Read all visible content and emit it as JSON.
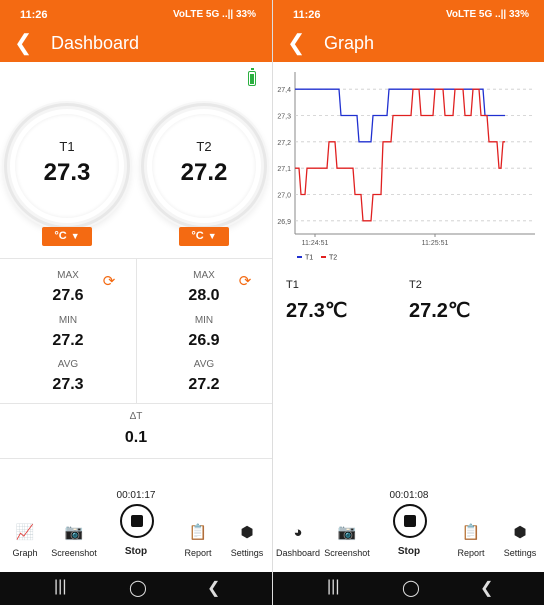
{
  "status": {
    "time": "11:26",
    "indicators": "VoLTE 5G ..|| 33%"
  },
  "dashboard": {
    "title": "Dashboard",
    "sensors": [
      {
        "label": "T1",
        "value": "27.3",
        "unit_label": "°C",
        "max_label": "MAX",
        "max": "27.6",
        "min_label": "MIN",
        "min": "27.2",
        "avg_label": "AVG",
        "avg": "27.3"
      },
      {
        "label": "T2",
        "value": "27.2",
        "unit_label": "°C",
        "max_label": "MAX",
        "max": "28.0",
        "min_label": "MIN",
        "min": "26.9",
        "avg_label": "AVG",
        "avg": "27.2"
      }
    ],
    "delta_label": "ΔT",
    "delta_value": "0.1",
    "timer": "00:01:17",
    "tabs": [
      "Graph",
      "Screenshot",
      "Stop",
      "Report",
      "Settings"
    ]
  },
  "graph": {
    "title": "Graph",
    "timer": "00:01:08",
    "readings": [
      {
        "label": "T1",
        "value": "27.3℃"
      },
      {
        "label": "T2",
        "value": "27.2℃"
      }
    ],
    "tabs": [
      "Dashboard",
      "Screenshot",
      "Stop",
      "Report",
      "Settings"
    ]
  },
  "chart_data": {
    "type": "line",
    "y_ticks": [
      "27,4",
      "27,3",
      "27,2",
      "27,1",
      "27,0",
      "26,9"
    ],
    "ylim": [
      26.85,
      27.45
    ],
    "x_ticks": [
      "11:24:51",
      "11:25:51"
    ],
    "x_tick_positions": [
      10,
      70
    ],
    "xlim": [
      0,
      120
    ],
    "grid": true,
    "legend_position": "bottom-left",
    "series": [
      {
        "name": "T1",
        "color": "#2030d0",
        "x": [
          0,
          22,
          23,
          31,
          32,
          38,
          39,
          46,
          47,
          53,
          54,
          94,
          95,
          105
        ],
        "y": [
          27.4,
          27.4,
          27.3,
          27.3,
          27.2,
          27.2,
          27.3,
          27.3,
          27.4,
          27.4,
          27.4,
          27.4,
          27.3,
          27.3
        ]
      },
      {
        "name": "T2",
        "color": "#e02020",
        "x": [
          0,
          2,
          3,
          5,
          6,
          16,
          17,
          20,
          21,
          29,
          30,
          33,
          34,
          38,
          39,
          43,
          44,
          48,
          49,
          53,
          54,
          58,
          59,
          62,
          63,
          69,
          70,
          74,
          75,
          79,
          80,
          84,
          85,
          88,
          89,
          92,
          93,
          96,
          97,
          101,
          102,
          103,
          104,
          105
        ],
        "y": [
          27.1,
          27.1,
          27.0,
          27.0,
          27.1,
          27.1,
          27.2,
          27.2,
          27.1,
          27.1,
          27.0,
          27.0,
          26.9,
          26.9,
          27.0,
          27.0,
          27.2,
          27.2,
          27.3,
          27.3,
          27.3,
          27.3,
          27.4,
          27.4,
          27.3,
          27.3,
          27.4,
          27.4,
          27.3,
          27.3,
          27.4,
          27.4,
          27.3,
          27.3,
          27.4,
          27.4,
          27.3,
          27.3,
          27.2,
          27.2,
          27.1,
          27.1,
          27.2,
          27.2
        ]
      }
    ]
  }
}
